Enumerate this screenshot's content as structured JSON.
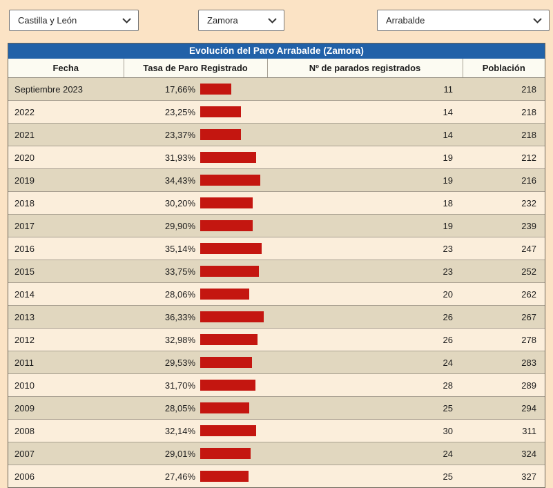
{
  "filters": {
    "region": {
      "value": "Castilla y León"
    },
    "province": {
      "value": "Zamora"
    },
    "municipality": {
      "value": "Arrabalde"
    }
  },
  "table": {
    "title": "Evolución del Paro Arrabalde (Zamora)",
    "columns": [
      "Fecha",
      "Tasa de Paro Registrado",
      "Nº de parados registrados",
      "Población"
    ],
    "rows": [
      {
        "fecha": "Septiembre 2023",
        "tasa": "17,66%",
        "parados": "11",
        "poblacion": "218"
      },
      {
        "fecha": "2022",
        "tasa": "23,25%",
        "parados": "14",
        "poblacion": "218"
      },
      {
        "fecha": "2021",
        "tasa": "23,37%",
        "parados": "14",
        "poblacion": "218"
      },
      {
        "fecha": "2020",
        "tasa": "31,93%",
        "parados": "19",
        "poblacion": "212"
      },
      {
        "fecha": "2019",
        "tasa": "34,43%",
        "parados": "19",
        "poblacion": "216"
      },
      {
        "fecha": "2018",
        "tasa": "30,20%",
        "parados": "18",
        "poblacion": "232"
      },
      {
        "fecha": "2017",
        "tasa": "29,90%",
        "parados": "19",
        "poblacion": "239"
      },
      {
        "fecha": "2016",
        "tasa": "35,14%",
        "parados": "23",
        "poblacion": "247"
      },
      {
        "fecha": "2015",
        "tasa": "33,75%",
        "parados": "23",
        "poblacion": "252"
      },
      {
        "fecha": "2014",
        "tasa": "28,06%",
        "parados": "20",
        "poblacion": "262"
      },
      {
        "fecha": "2013",
        "tasa": "36,33%",
        "parados": "26",
        "poblacion": "267"
      },
      {
        "fecha": "2012",
        "tasa": "32,98%",
        "parados": "26",
        "poblacion": "278"
      },
      {
        "fecha": "2011",
        "tasa": "29,53%",
        "parados": "24",
        "poblacion": "283"
      },
      {
        "fecha": "2010",
        "tasa": "31,70%",
        "parados": "28",
        "poblacion": "289"
      },
      {
        "fecha": "2009",
        "tasa": "28,05%",
        "parados": "25",
        "poblacion": "294"
      },
      {
        "fecha": "2008",
        "tasa": "32,14%",
        "parados": "30",
        "poblacion": "311"
      },
      {
        "fecha": "2007",
        "tasa": "29,01%",
        "parados": "24",
        "poblacion": "324"
      },
      {
        "fecha": "2006",
        "tasa": "27,46%",
        "parados": "25",
        "poblacion": "327"
      }
    ]
  },
  "colors": {
    "page_bg": "#fbe3c5",
    "accent_blue": "#2161a8",
    "bar_red": "#c41610",
    "row_odd": "#e1d7bf",
    "row_even": "#fbeedb"
  }
}
